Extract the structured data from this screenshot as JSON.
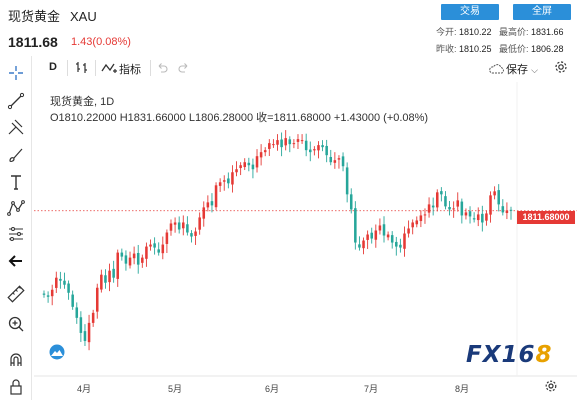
{
  "header": {
    "name": "现货黄金",
    "symbol": "XAU",
    "price": "1811.68",
    "change": "1.43(0.08%)",
    "trade_button": "交易",
    "fullscreen_button": "全屏",
    "quote": {
      "open_label": "今开:",
      "open": "1810.22",
      "high_label": "最高价:",
      "high": "1831.66",
      "prev_close_label": "昨收:",
      "prev_close": "1810.25",
      "low_label": "最低价:",
      "low": "1806.28"
    }
  },
  "toolbar": {
    "interval": "D",
    "indicators": "指标",
    "save": "保存"
  },
  "legend": {
    "title": "现货黄金, 1D",
    "ohlc": "O1810.22000  H1831.66000  L1806.28000  收=1811.68000  +1.43000 (+0.08%)"
  },
  "chart_data": {
    "type": "candlestick",
    "symbol": "XAU",
    "interval": "1D",
    "last_price_label": "1811.68000",
    "x_tick_labels": [
      "4月",
      "5月",
      "6月",
      "7月",
      "8月"
    ],
    "colors": {
      "up": "#e53935",
      "down": "#26a69a",
      "last_line": "#e53935"
    },
    "candles_close_approx": [
      1728,
      1726,
      1733,
      1745,
      1742,
      1738,
      1730,
      1716,
      1705,
      1690,
      1682,
      1700,
      1710,
      1735,
      1748,
      1740,
      1752,
      1745,
      1770,
      1766,
      1759,
      1765,
      1769,
      1758,
      1765,
      1776,
      1778,
      1775,
      1770,
      1778,
      1790,
      1799,
      1800,
      1793,
      1800,
      1790,
      1786,
      1791,
      1805,
      1815,
      1820,
      1817,
      1837,
      1840,
      1842,
      1839,
      1850,
      1853,
      1857,
      1860,
      1857,
      1853,
      1866,
      1870,
      1872,
      1879,
      1878,
      1882,
      1875,
      1884,
      1878,
      1879,
      1883,
      1882,
      1872,
      1870,
      1873,
      1877,
      1875,
      1867,
      1860,
      1862,
      1864,
      1856,
      1828,
      1813,
      1780,
      1775,
      1782,
      1788,
      1784,
      1792,
      1797,
      1787,
      1788,
      1780,
      1776,
      1775,
      1789,
      1794,
      1800,
      1802,
      1807,
      1808,
      1818,
      1815,
      1830,
      1828,
      1816,
      1813,
      1814,
      1822,
      1807,
      1810,
      1806,
      1803,
      1808,
      1800,
      1809,
      1827,
      1831,
      1818,
      1810,
      1812,
      1811.68
    ],
    "y_range": [
      1673,
      1910
    ]
  },
  "watermark": "FX168",
  "icons": [
    "crosshair-icon",
    "trend-line-icon",
    "pitchfork-icon",
    "brush-icon",
    "text-icon",
    "pattern-icon",
    "measure-tools-icon",
    "back-arrow-icon",
    "ruler-icon",
    "zoom-in-icon",
    "magnet-icon",
    "lock-icon",
    "trash-icon",
    "bar-style-icon",
    "undo-icon",
    "redo-icon",
    "cloud-icon",
    "settings-icon"
  ]
}
